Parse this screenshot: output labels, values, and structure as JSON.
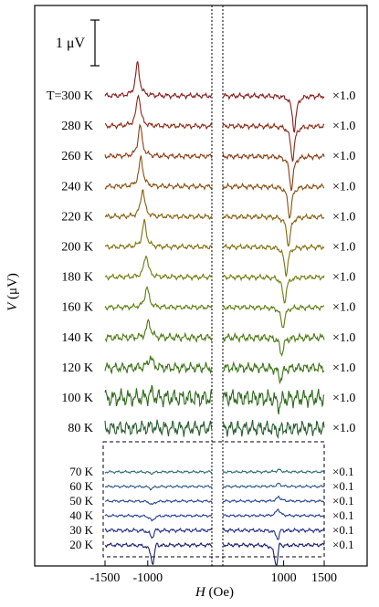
{
  "chart_data": {
    "type": "line",
    "xlabel_italic": "H",
    "xlabel_unit": " (Oe)",
    "ylabel_italic": "V",
    "ylabel_unit": " (μV)",
    "x_ticks": [
      -1500,
      -1000,
      1000,
      1500
    ],
    "x_tick_labels": [
      "-1500",
      "-1000",
      "1000",
      "1500"
    ],
    "scale_bar_label": "1 μV",
    "scale_bar_value_uV": 1,
    "break_left_Oe": -250,
    "break_right_Oe": 250,
    "left_range_Oe": [
      -1500,
      -250
    ],
    "right_range_Oe": [
      250,
      1500
    ],
    "series": [
      {
        "label": "T=300 K",
        "T": 300,
        "scale": "×1.0",
        "color": "#8b1a1a",
        "left_peak_Oe": -1120,
        "left_amp_uV": 0.9,
        "right_peak_Oe": 1130,
        "right_amp_uV": -0.95,
        "noise": 0.02
      },
      {
        "label": "280 K",
        "T": 280,
        "scale": "×1.0",
        "color": "#8d2a14",
        "left_peak_Oe": -1110,
        "left_amp_uV": 0.88,
        "right_peak_Oe": 1110,
        "right_amp_uV": -0.92,
        "noise": 0.02
      },
      {
        "label": "260 K",
        "T": 260,
        "scale": "×1.0",
        "color": "#8c3c12",
        "left_peak_Oe": -1090,
        "left_amp_uV": 0.85,
        "right_peak_Oe": 1095,
        "right_amp_uV": -0.9,
        "noise": 0.02
      },
      {
        "label": "240 K",
        "T": 240,
        "scale": "×1.0",
        "color": "#8a4f10",
        "left_peak_Oe": -1080,
        "left_amp_uV": 0.8,
        "right_peak_Oe": 1075,
        "right_amp_uV": -0.85,
        "noise": 0.02
      },
      {
        "label": "220 K",
        "T": 220,
        "scale": "×1.0",
        "color": "#86610e",
        "left_peak_Oe": -1060,
        "left_amp_uV": 0.75,
        "right_peak_Oe": 1060,
        "right_amp_uV": -0.8,
        "noise": 0.02
      },
      {
        "label": "200 K",
        "T": 200,
        "scale": "×1.0",
        "color": "#7e710c",
        "left_peak_Oe": -1040,
        "left_amp_uV": 0.7,
        "right_peak_Oe": 1030,
        "right_amp_uV": -0.75,
        "noise": 0.02
      },
      {
        "label": "180 K",
        "T": 180,
        "scale": "×1.0",
        "color": "#6f7d0d",
        "left_peak_Oe": -1020,
        "left_amp_uV": 0.62,
        "right_peak_Oe": 1010,
        "right_amp_uV": -0.68,
        "noise": 0.02
      },
      {
        "label": "160 K",
        "T": 160,
        "scale": "×1.0",
        "color": "#5d7f10",
        "left_peak_Oe": -1010,
        "left_amp_uV": 0.55,
        "right_peak_Oe": 990,
        "right_amp_uV": -0.55,
        "noise": 0.02
      },
      {
        "label": "140 K",
        "T": 140,
        "scale": "×1.0",
        "color": "#4c7a14",
        "left_peak_Oe": -990,
        "left_amp_uV": 0.45,
        "right_peak_Oe": 975,
        "right_amp_uV": -0.45,
        "noise": 0.03
      },
      {
        "label": "120 K",
        "T": 120,
        "scale": "×1.0",
        "color": "#3c7218",
        "left_peak_Oe": -970,
        "left_amp_uV": 0.3,
        "right_peak_Oe": 960,
        "right_amp_uV": -0.32,
        "noise": 0.04
      },
      {
        "label": "100 K",
        "T": 100,
        "scale": "×1.0",
        "color": "#2e6a1c",
        "left_peak_Oe": -960,
        "left_amp_uV": 0.15,
        "right_peak_Oe": 940,
        "right_amp_uV": -0.22,
        "noise": 0.07
      },
      {
        "label": "80 K",
        "T": 80,
        "scale": "×1.0",
        "color": "#2a5e30",
        "left_peak_Oe": -950,
        "left_amp_uV": 0.06,
        "right_peak_Oe": 930,
        "right_amp_uV": -0.08,
        "noise": 0.06
      },
      {
        "label": "70 K",
        "T": 70,
        "scale": "×0.1",
        "color": "#2d6a78",
        "left_peak_Oe": -960,
        "left_amp_uV": -0.04,
        "right_peak_Oe": 940,
        "right_amp_uV": 0.06,
        "noise": 0.01
      },
      {
        "label": "60 K",
        "T": 60,
        "scale": "×0.1",
        "color": "#2b5a88",
        "left_peak_Oe": -960,
        "left_amp_uV": -0.06,
        "right_peak_Oe": 940,
        "right_amp_uV": 0.08,
        "noise": 0.01
      },
      {
        "label": "50 K",
        "T": 50,
        "scale": "×0.1",
        "color": "#2a4a96",
        "left_peak_Oe": -950,
        "left_amp_uV": -0.1,
        "right_peak_Oe": 940,
        "right_amp_uV": 0.12,
        "noise": 0.01
      },
      {
        "label": "40 K",
        "T": 40,
        "scale": "×0.1",
        "color": "#273d98",
        "left_peak_Oe": -950,
        "left_amp_uV": -0.14,
        "right_peak_Oe": 930,
        "right_amp_uV": 0.18,
        "noise": 0.01
      },
      {
        "label": "30 K",
        "T": 30,
        "scale": "×0.1",
        "color": "#222f8c",
        "left_peak_Oe": -950,
        "left_amp_uV": -0.22,
        "right_peak_Oe": 930,
        "right_amp_uV": -0.25,
        "noise": 0.015
      },
      {
        "label": "20 K",
        "T": 20,
        "scale": "×0.1",
        "color": "#1a1f6a",
        "left_peak_Oe": -940,
        "left_amp_uV": -0.55,
        "right_peak_Oe": 910,
        "right_amp_uV": -0.6,
        "noise": 0.015
      }
    ]
  }
}
